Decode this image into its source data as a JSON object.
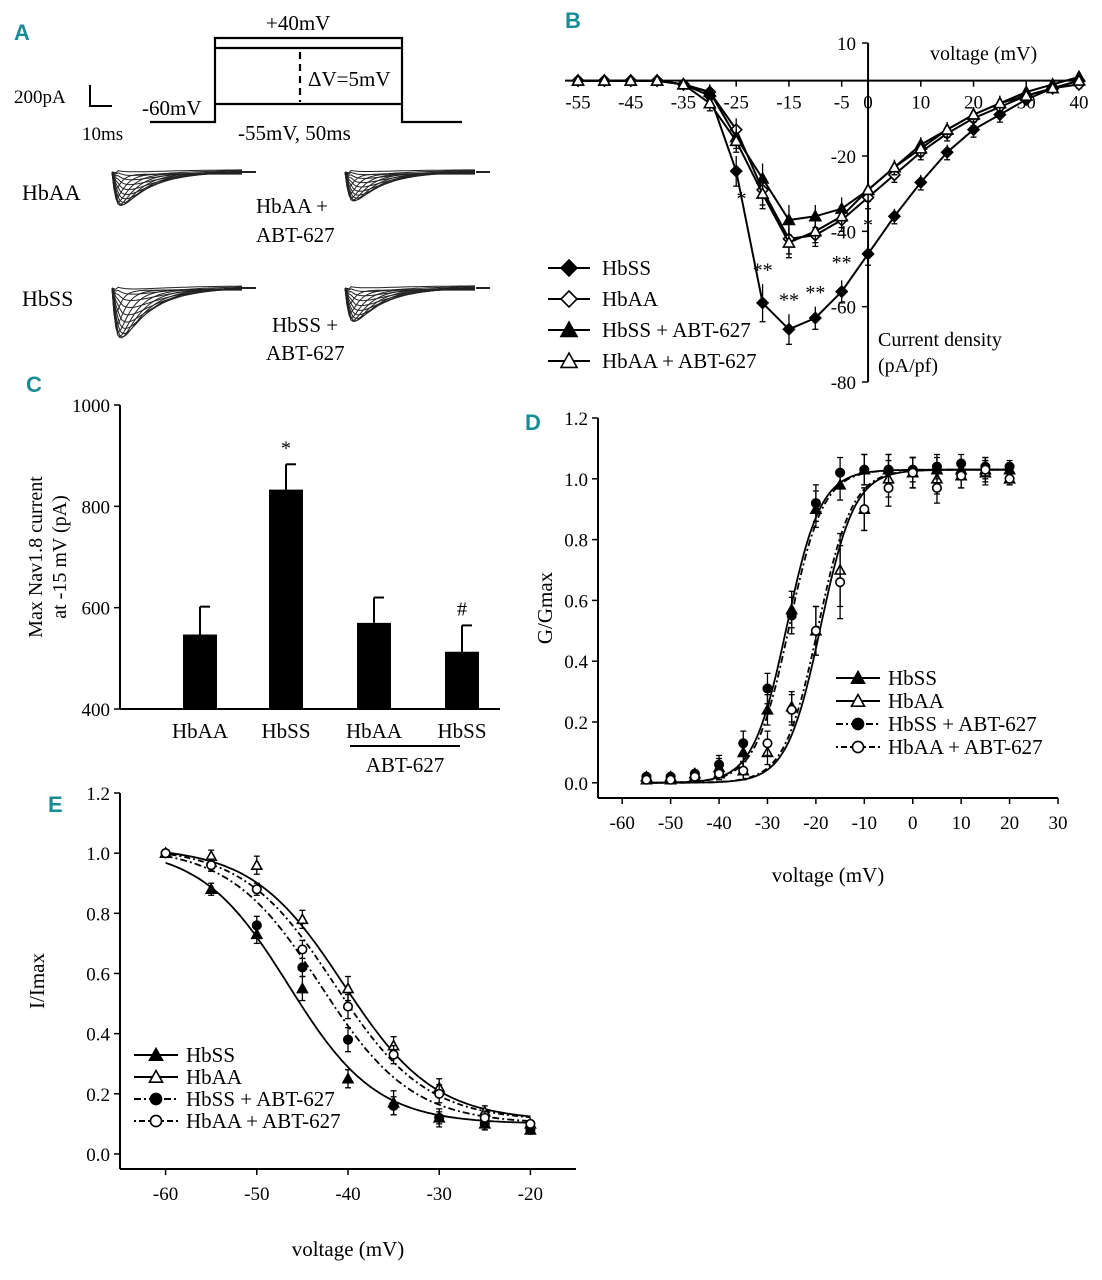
{
  "panels": {
    "a": "A",
    "b": "B",
    "c": "C",
    "d": "D",
    "e": "E"
  },
  "protocol": {
    "scale_current": "200pA",
    "scale_time": "10ms",
    "holding": "-60mV",
    "top": "+40mV",
    "step": "ΔV=5mV",
    "start": "-55mV, 50ms"
  },
  "traces": {
    "hbaa": "HbAA",
    "hbaa_abt_line1": "HbAA +",
    "hbaa_abt_line2": "ABT-627",
    "hbss": "HbSS",
    "hbss_abt_line1": "HbSS +",
    "hbss_abt_line2": "ABT-627"
  },
  "colors": {
    "accent": "#1a8c96",
    "ink": "#000000",
    "background": "#ffffff"
  },
  "chart_data": [
    {
      "id": "B",
      "type": "line",
      "xlabel": "voltage (mV)",
      "ylabel_line1": "Current density",
      "ylabel_line2": "(pA/pf)",
      "xlim": [
        -55,
        40
      ],
      "ylim": [
        -80,
        10
      ],
      "xticks": [
        -55,
        -45,
        -35,
        -25,
        -15,
        -5,
        0,
        10,
        20,
        30,
        40
      ],
      "yticks": [
        10,
        -20,
        -40,
        -60,
        -80
      ],
      "x": [
        -55,
        -50,
        -45,
        -40,
        -35,
        -30,
        -25,
        -20,
        -15,
        -10,
        -5,
        0,
        5,
        10,
        15,
        20,
        25,
        30,
        35,
        40
      ],
      "series": [
        {
          "name": "HbSS",
          "marker": "diamond-filled",
          "values": [
            0,
            0,
            0,
            0,
            -1,
            -4,
            -24,
            -59,
            -66,
            -63,
            -56,
            -46,
            -36,
            -27,
            -19,
            -13,
            -9,
            -5,
            -2,
            0
          ],
          "errors": [
            0,
            0,
            0,
            0,
            1,
            2,
            4,
            5,
            4,
            3,
            3,
            3,
            2,
            2,
            2,
            2,
            2,
            1,
            1,
            1
          ]
        },
        {
          "name": "HbAA",
          "marker": "diamond-open",
          "values": [
            0,
            0,
            0,
            0,
            -1,
            -3,
            -13,
            -29,
            -42,
            -41,
            -37,
            -31,
            -25,
            -19,
            -14,
            -10,
            -7,
            -4,
            -2,
            -1
          ],
          "errors": [
            0,
            0,
            0,
            0,
            1,
            2,
            3,
            4,
            4,
            3,
            3,
            3,
            2,
            2,
            2,
            2,
            2,
            1,
            1,
            1
          ]
        },
        {
          "name": "HbSS + ABT-627",
          "marker": "triangle-filled",
          "values": [
            0,
            0,
            0,
            0,
            -1,
            -3,
            -15,
            -26,
            -37,
            -36,
            -34,
            -29,
            -23,
            -17,
            -13,
            -9,
            -6,
            -3,
            -1,
            1
          ],
          "errors": [
            0,
            0,
            0,
            0,
            1,
            2,
            3,
            4,
            4,
            3,
            3,
            3,
            2,
            2,
            2,
            2,
            2,
            1,
            1,
            1
          ]
        },
        {
          "name": "HbAA + ABT-627",
          "marker": "triangle-open",
          "values": [
            0,
            0,
            0,
            0,
            -1,
            -6,
            -16,
            -30,
            -43,
            -40,
            -36,
            -29,
            -23,
            -18,
            -13,
            -9,
            -6,
            -4,
            -2,
            0
          ],
          "errors": [
            0,
            0,
            0,
            0,
            1,
            2,
            3,
            4,
            4,
            3,
            3,
            3,
            2,
            2,
            2,
            2,
            2,
            1,
            1,
            1
          ]
        }
      ],
      "annotations": [
        {
          "text": "*",
          "x": -24,
          "y": -33
        },
        {
          "text": "**",
          "x": -20,
          "y": -52
        },
        {
          "text": "**",
          "x": -15,
          "y": -60
        },
        {
          "text": "**",
          "x": -10,
          "y": -58
        },
        {
          "text": "**",
          "x": -5,
          "y": -50
        },
        {
          "text": "*",
          "x": 0,
          "y": -40
        }
      ]
    },
    {
      "id": "C",
      "type": "bar",
      "categories": [
        "HbAA",
        "HbSS",
        "HbAA",
        "HbSS"
      ],
      "values": [
        547,
        833,
        570,
        513
      ],
      "errors": [
        55,
        50,
        50,
        52
      ],
      "annotations": [
        "",
        "*",
        "",
        "#"
      ],
      "group_label": "ABT-627",
      "ylabel_line1": "Max Nav1.8 current",
      "ylabel_line2": "at -15 mV (pA)",
      "ylim": [
        400,
        1000
      ],
      "yticks": [
        400,
        600,
        800,
        1000
      ]
    },
    {
      "id": "D",
      "type": "scatter",
      "xlabel": "voltage (mV)",
      "ylabel": "G/Gmax",
      "xlim": [
        -65,
        30
      ],
      "ylim": [
        -0.05,
        1.2
      ],
      "xticks": [
        -60,
        -50,
        -40,
        -30,
        -20,
        -10,
        0,
        10,
        20,
        30
      ],
      "yticks": [
        0.0,
        0.2,
        0.4,
        0.6,
        0.8,
        1.0,
        1.2
      ],
      "x": [
        -55,
        -50,
        -45,
        -40,
        -35,
        -30,
        -25,
        -20,
        -15,
        -10,
        -5,
        0,
        5,
        10,
        15,
        20
      ],
      "series": [
        {
          "name": "HbSS",
          "marker": "triangle-filled",
          "fit": "solid",
          "v_half": -26,
          "k": 3.5,
          "values": [
            0.02,
            0.02,
            0.03,
            0.05,
            0.1,
            0.24,
            0.57,
            0.9,
            0.98,
            1.03,
            1.03,
            1.02,
            1.03,
            1.03,
            1.03,
            1.03
          ],
          "errors": [
            0.01,
            0.01,
            0.01,
            0.03,
            0.03,
            0.05,
            0.06,
            0.06,
            0.05,
            0.05,
            0.05,
            0.05,
            0.04,
            0.03,
            0.03,
            0.02
          ]
        },
        {
          "name": "HbAA",
          "marker": "triangle-open",
          "fit": "solid",
          "v_half": -19,
          "k": 3.5,
          "values": [
            0.01,
            0.01,
            0.02,
            0.03,
            0.04,
            0.1,
            0.25,
            0.5,
            0.7,
            0.9,
            1.0,
            1.02,
            1.0,
            1.01,
            1.02,
            1.0
          ],
          "errors": [
            0.01,
            0.01,
            0.01,
            0.02,
            0.03,
            0.04,
            0.05,
            0.08,
            0.12,
            0.07,
            0.06,
            0.05,
            0.05,
            0.04,
            0.04,
            0.02
          ]
        },
        {
          "name": "HbSS + ABT-627",
          "marker": "circle-filled",
          "fit": "dashdot",
          "v_half": -25.5,
          "k": 3.5,
          "values": [
            0.02,
            0.02,
            0.03,
            0.06,
            0.13,
            0.31,
            0.55,
            0.92,
            1.02,
            1.03,
            1.03,
            1.03,
            1.04,
            1.05,
            1.04,
            1.04
          ],
          "errors": [
            0.01,
            0.01,
            0.01,
            0.03,
            0.04,
            0.05,
            0.06,
            0.06,
            0.05,
            0.05,
            0.05,
            0.04,
            0.04,
            0.03,
            0.03,
            0.02
          ]
        },
        {
          "name": "HbAA + ABT-627",
          "marker": "circle-open",
          "fit": "dotdash",
          "v_half": -19.5,
          "k": 3.5,
          "values": [
            0.01,
            0.01,
            0.02,
            0.03,
            0.04,
            0.13,
            0.24,
            0.5,
            0.66,
            0.9,
            0.97,
            1.02,
            0.97,
            1.01,
            1.03,
            1.0
          ],
          "errors": [
            0.01,
            0.01,
            0.01,
            0.02,
            0.03,
            0.04,
            0.05,
            0.08,
            0.12,
            0.07,
            0.06,
            0.05,
            0.05,
            0.04,
            0.04,
            0.02
          ]
        }
      ]
    },
    {
      "id": "E",
      "type": "scatter",
      "xlabel": "voltage (mV)",
      "ylabel": "I/Imax",
      "xlim": [
        -65,
        -15
      ],
      "ylim": [
        -0.05,
        1.2
      ],
      "xticks": [
        -60,
        -50,
        -40,
        -30,
        -20
      ],
      "yticks": [
        0.0,
        0.2,
        0.4,
        0.6,
        0.8,
        1.0,
        1.2
      ],
      "x": [
        -60,
        -55,
        -50,
        -45,
        -40,
        -35,
        -30,
        -25,
        -20
      ],
      "series": [
        {
          "name": "HbSS",
          "marker": "triangle-filled",
          "fit": "solid",
          "v_half": -46.5,
          "k": 4.8,
          "bottom": 0.08,
          "values": [
            1.0,
            0.88,
            0.73,
            0.55,
            0.25,
            0.17,
            0.12,
            0.1,
            0.08
          ],
          "errors": [
            0.01,
            0.02,
            0.03,
            0.04,
            0.03,
            0.04,
            0.03,
            0.02,
            0.01
          ]
        },
        {
          "name": "HbAA",
          "marker": "triangle-open",
          "fit": "solid",
          "v_half": -40.5,
          "k": 5.0,
          "bottom": 0.09,
          "values": [
            1.0,
            0.99,
            0.96,
            0.78,
            0.55,
            0.36,
            0.22,
            0.14,
            0.1
          ],
          "errors": [
            0.01,
            0.02,
            0.03,
            0.03,
            0.04,
            0.03,
            0.03,
            0.02,
            0.01
          ]
        },
        {
          "name": "HbSS + ABT-627",
          "marker": "circle-filled",
          "fit": "dashdot",
          "v_half": -43,
          "k": 5.0,
          "bottom": 0.08,
          "values": [
            1.0,
            0.96,
            0.76,
            0.62,
            0.38,
            0.16,
            0.12,
            0.1,
            0.08
          ],
          "errors": [
            0.01,
            0.02,
            0.03,
            0.03,
            0.04,
            0.03,
            0.02,
            0.02,
            0.01
          ]
        },
        {
          "name": "HbAA + ABT-627",
          "marker": "circle-open",
          "fit": "dotdash",
          "v_half": -41.5,
          "k": 5.0,
          "bottom": 0.09,
          "values": [
            1.0,
            0.96,
            0.88,
            0.68,
            0.49,
            0.33,
            0.2,
            0.12,
            0.1
          ],
          "errors": [
            0.01,
            0.02,
            0.02,
            0.03,
            0.04,
            0.03,
            0.03,
            0.02,
            0.01
          ]
        }
      ]
    }
  ]
}
